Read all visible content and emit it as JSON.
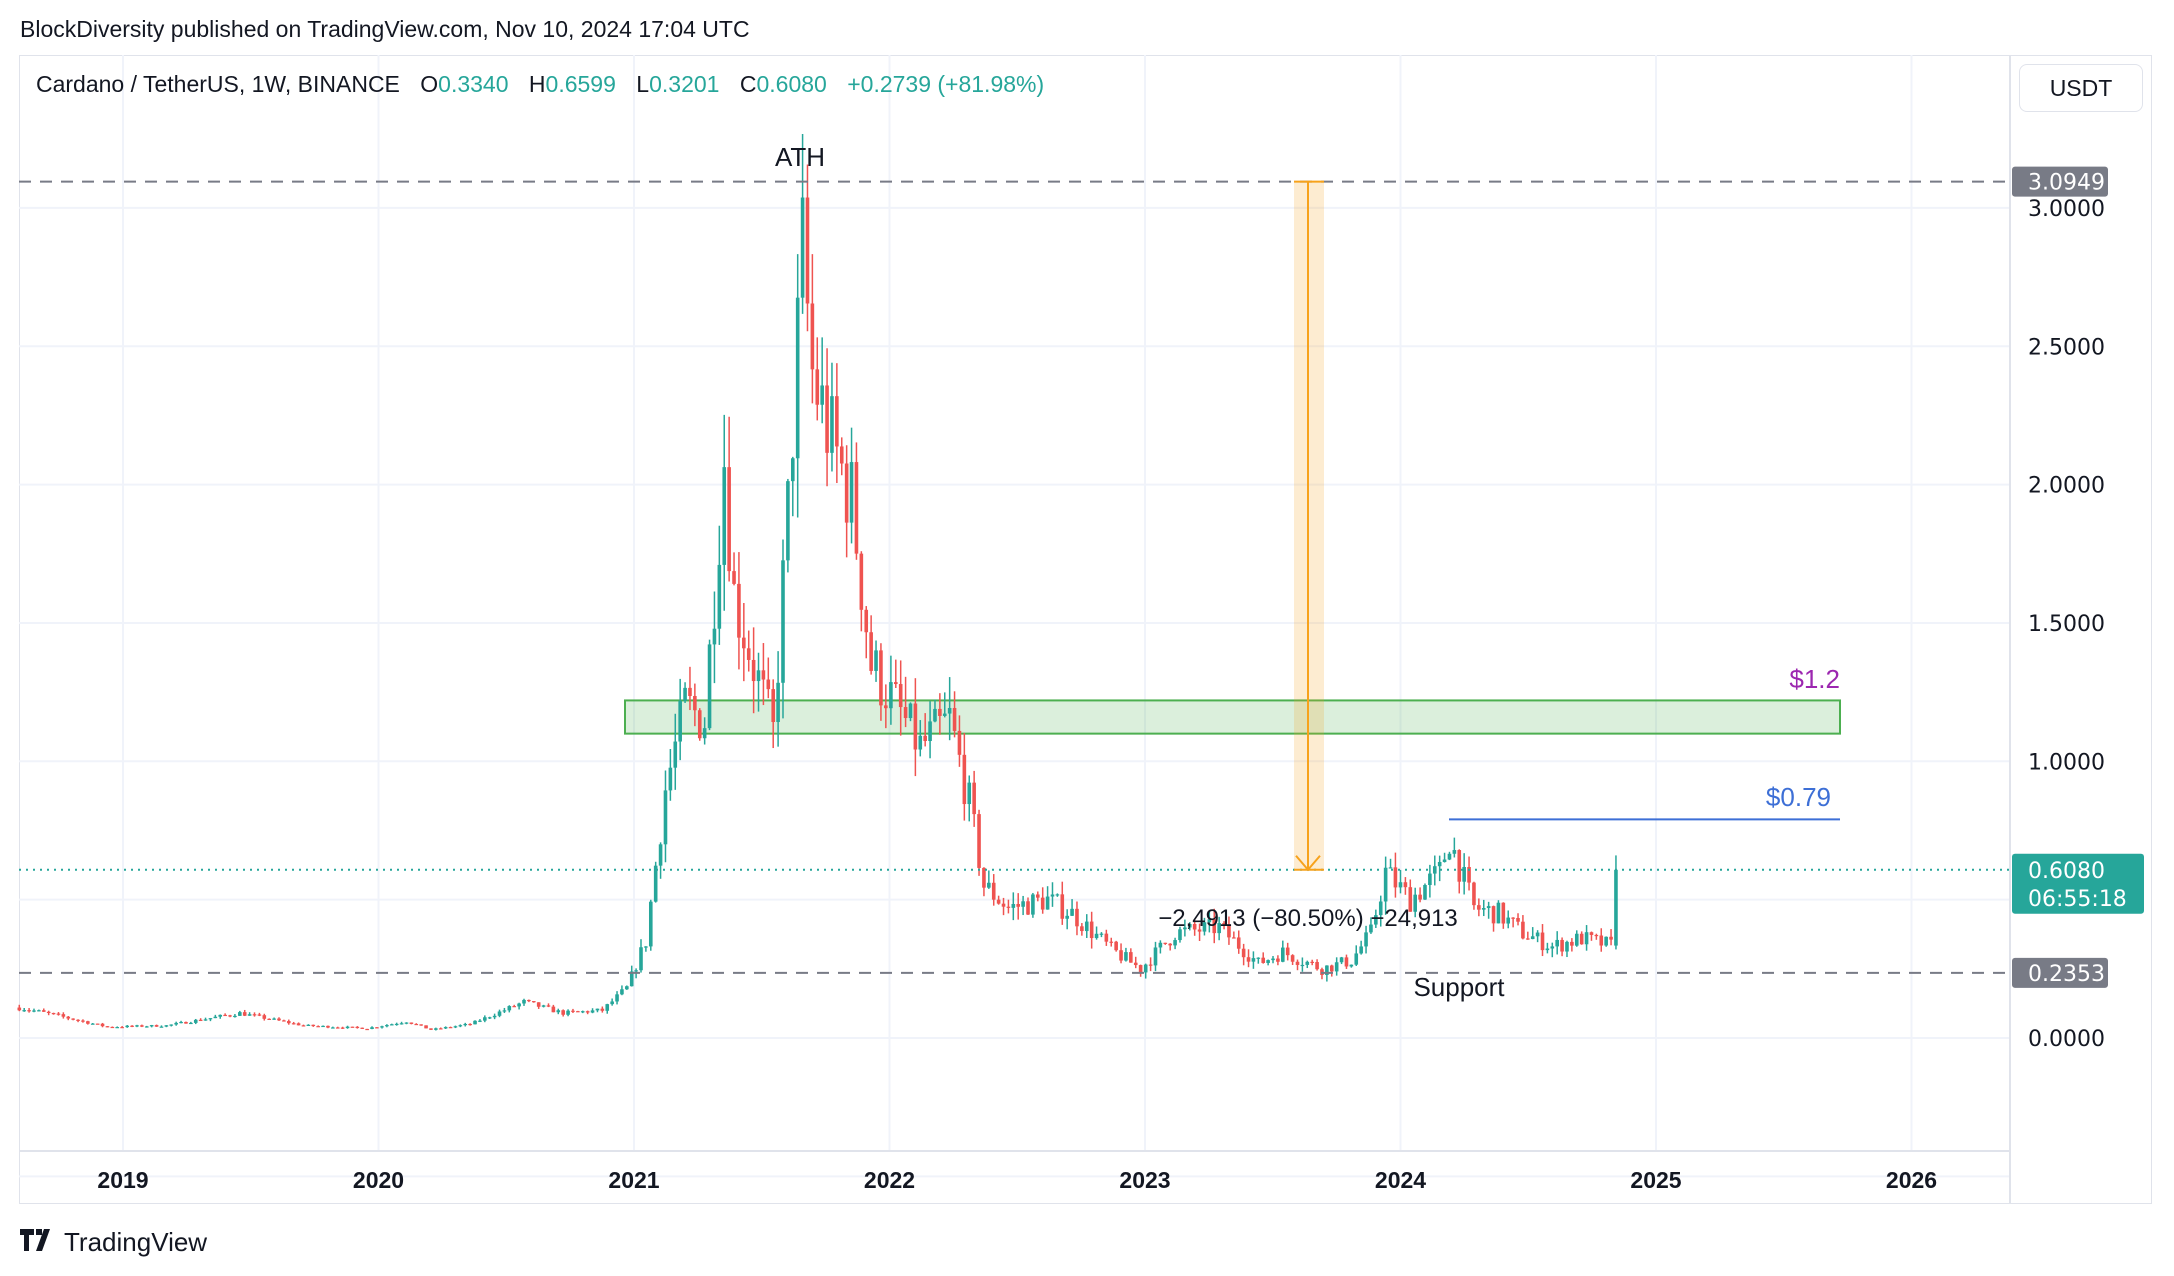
{
  "publisher": "BlockDiversity published on TradingView.com, Nov 10, 2024 17:04 UTC",
  "legend": {
    "symbol": "Cardano / TetherUS, 1W, BINANCE",
    "open_label": "O",
    "open": "0.3340",
    "high_label": "H",
    "high": "0.6599",
    "low_label": "L",
    "low": "0.3201",
    "close_label": "C",
    "close": "0.6080",
    "change": "+0.2739 (+81.98%)"
  },
  "currency": "USDT",
  "footer": {
    "brand": "TradingView",
    "logo": "17"
  },
  "colors": {
    "up": "#26a69a",
    "down": "#ef5350",
    "zone": "#4caf50",
    "zone_label": "#9c27b0",
    "resistance": "#3d6fd6",
    "measure": "#f7a21b",
    "tag_gray": "#787b86"
  },
  "chart_data": {
    "type": "candlestick",
    "interval": "1W",
    "x_tick_labels": [
      "2019",
      "2020",
      "2021",
      "2022",
      "2023",
      "2024",
      "2025",
      "2026"
    ],
    "y_tick_labels": [
      "0.0000",
      "1.0000",
      "1.5000",
      "2.0000",
      "2.5000",
      "3.0000"
    ],
    "ylim": [
      -0.4,
      3.25
    ],
    "grid": true,
    "approx_weekly_close_path": [
      [
        "2018-08-06",
        0.11
      ],
      [
        "2018-10-01",
        0.08
      ],
      [
        "2018-12-10",
        0.04
      ],
      [
        "2019-03-04",
        0.045
      ],
      [
        "2019-06-17",
        0.09
      ],
      [
        "2019-09-16",
        0.045
      ],
      [
        "2019-12-16",
        0.035
      ],
      [
        "2020-02-10",
        0.06
      ],
      [
        "2020-03-16",
        0.03
      ],
      [
        "2020-05-11",
        0.05
      ],
      [
        "2020-07-27",
        0.13
      ],
      [
        "2020-09-21",
        0.09
      ],
      [
        "2020-11-16",
        0.1
      ],
      [
        "2020-12-21",
        0.18
      ],
      [
        "2021-01-18",
        0.35
      ],
      [
        "2021-02-15",
        0.9
      ],
      [
        "2021-03-15",
        1.2
      ],
      [
        "2021-04-12",
        1.15
      ],
      [
        "2021-05-10",
        2.1
      ],
      [
        "2021-05-24",
        1.6
      ],
      [
        "2021-06-21",
        1.35
      ],
      [
        "2021-07-19",
        1.1
      ],
      [
        "2021-08-09",
        1.9
      ],
      [
        "2021-08-30",
        2.85
      ],
      [
        "2021-09-13",
        2.4
      ],
      [
        "2021-10-11",
        2.15
      ],
      [
        "2021-11-08",
        1.95
      ],
      [
        "2021-12-06",
        1.35
      ],
      [
        "2022-01-10",
        1.2
      ],
      [
        "2022-02-14",
        1.05
      ],
      [
        "2022-03-28",
        1.15
      ],
      [
        "2022-04-25",
        0.85
      ],
      [
        "2022-05-16",
        0.55
      ],
      [
        "2022-06-20",
        0.47
      ],
      [
        "2022-08-15",
        0.5
      ],
      [
        "2022-09-19",
        0.45
      ],
      [
        "2022-11-14",
        0.32
      ],
      [
        "2022-12-26",
        0.25
      ],
      [
        "2023-02-13",
        0.38
      ],
      [
        "2023-04-17",
        0.4
      ],
      [
        "2023-06-12",
        0.27
      ],
      [
        "2023-07-17",
        0.31
      ],
      [
        "2023-09-11",
        0.25
      ],
      [
        "2023-10-23",
        0.28
      ],
      [
        "2023-11-20",
        0.38
      ],
      [
        "2023-12-11",
        0.6
      ],
      [
        "2024-01-15",
        0.5
      ],
      [
        "2024-02-26",
        0.6
      ],
      [
        "2024-03-11",
        0.72
      ],
      [
        "2024-04-15",
        0.47
      ],
      [
        "2024-05-20",
        0.45
      ],
      [
        "2024-06-24",
        0.38
      ],
      [
        "2024-08-05",
        0.33
      ],
      [
        "2024-09-16",
        0.36
      ],
      [
        "2024-10-28",
        0.334
      ]
    ],
    "last_candle": {
      "date": "2024-11-04",
      "open": 0.334,
      "high": 0.6599,
      "low": 0.3201,
      "close": 0.608
    },
    "price_tags": {
      "ath": "3.0949",
      "current": "0.6080",
      "countdown": "06:55:18",
      "support": "0.2353"
    },
    "levels": {
      "ath": 3.0949,
      "support": 0.2353,
      "current": 0.608,
      "resistance": 0.79,
      "zone_low": 1.1,
      "zone_high": 1.22
    },
    "annotations": {
      "ath_label": "ATH",
      "support_label": "Support",
      "zone_label": "$1.2",
      "resistance_label": "$0.79",
      "measure_label": "−2,4913 (−80.50%) −24,913"
    }
  }
}
